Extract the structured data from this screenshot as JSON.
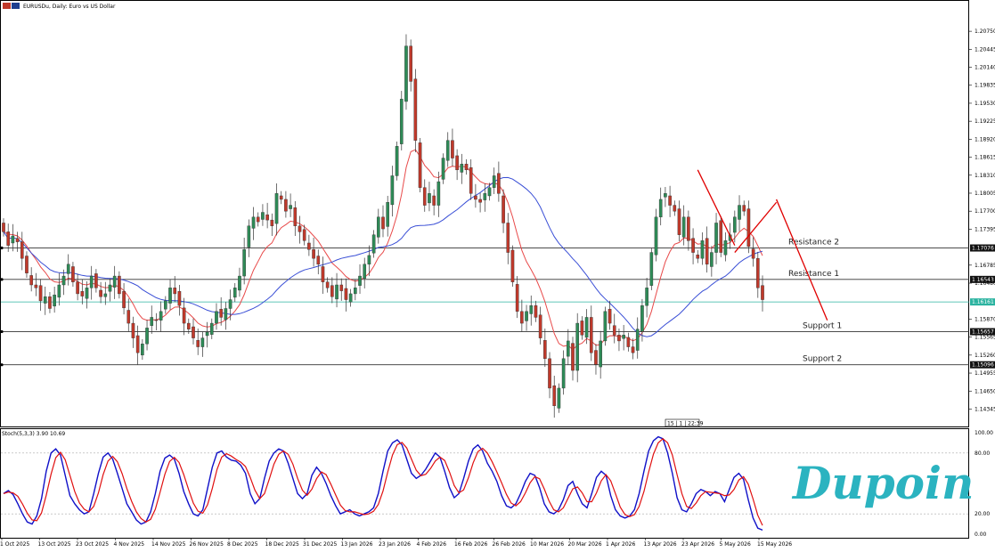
{
  "header": {
    "title": "EURUSDu, Daily: Euro vs US Dollar"
  },
  "colors": {
    "bull": "#2e8b57",
    "bear": "#c0392b",
    "ma_fast": "#e84a4a",
    "ma_slow": "#3a4fd6",
    "stoch_k": "#1010c8",
    "stoch_d": "#e01010",
    "current": "#2bb3a0",
    "logo": "#2bb3c0"
  },
  "logo": {
    "text": "Dupoin"
  },
  "chart_data": {
    "type": "candlestick",
    "title": "EURUSDu, Daily: Euro vs US Dollar",
    "ylim": [
      1.1405,
      1.2125
    ],
    "y_ticks": [
      "1.20750",
      "1.20445",
      "1.20140",
      "1.19835",
      "1.19530",
      "1.19225",
      "1.18920",
      "1.18615",
      "1.18310",
      "1.18005",
      "1.17700",
      "1.17395",
      "1.16785",
      "1.16480",
      "1.15870",
      "1.15565",
      "1.15260",
      "1.14955",
      "1.14650",
      "1.14345"
    ],
    "x_ticks": [
      "1 Oct 2025",
      "13 Oct 2025",
      "23 Oct 2025",
      "4 Nov 2025",
      "14 Nov 2025",
      "26 Nov 2025",
      "8 Dec 2025",
      "18 Dec 2025",
      "31 Dec 2025",
      "13 Jan 2026",
      "23 Jan 2026",
      "4 Feb 2026",
      "16 Feb 2026",
      "26 Feb 2026",
      "10 Mar 2026",
      "20 Mar 2026",
      "1 Apr 2026",
      "13 Apr 2026",
      "23 Apr 2026",
      "5 May 2026",
      "15 May 2026"
    ],
    "close": [
      1.1735,
      1.1712,
      1.1728,
      1.1718,
      1.169,
      1.1665,
      1.1645,
      1.164,
      1.1618,
      1.1625,
      1.1605,
      1.1628,
      1.1645,
      1.166,
      1.168,
      1.165,
      1.163,
      1.1626,
      1.164,
      1.166,
      1.164,
      1.1625,
      1.163,
      1.1645,
      1.166,
      1.163,
      1.1606,
      1.158,
      1.1555,
      1.153,
      1.1545,
      1.1572,
      1.159,
      1.1585,
      1.16,
      1.1618,
      1.164,
      1.163,
      1.161,
      1.158,
      1.157,
      1.1555,
      1.154,
      1.1555,
      1.1565,
      1.158,
      1.16,
      1.159,
      1.1605,
      1.162,
      1.164,
      1.166,
      1.1705,
      1.1745,
      1.176,
      1.1752,
      1.1768,
      1.1755,
      1.1745,
      1.18,
      1.179,
      1.177,
      1.178,
      1.1745,
      1.1735,
      1.172,
      1.1705,
      1.169,
      1.168,
      1.165,
      1.164,
      1.1625,
      1.1645,
      1.1635,
      1.162,
      1.163,
      1.164,
      1.166,
      1.168,
      1.1695,
      1.173,
      1.176,
      1.174,
      1.1785,
      1.183,
      1.188,
      1.196,
      1.205,
      1.199,
      1.189,
      1.181,
      1.178,
      1.18,
      1.178,
      1.182,
      1.186,
      1.189,
      1.186,
      1.184,
      1.185,
      1.184,
      1.18,
      1.179,
      1.1785,
      1.18,
      1.181,
      1.183,
      1.18,
      1.175,
      1.17,
      1.165,
      1.16,
      1.158,
      1.16,
      1.161,
      1.159,
      1.1555,
      1.152,
      1.147,
      1.144,
      1.147,
      1.152,
      1.155,
      1.15,
      1.158,
      1.156,
      1.159,
      1.153,
      1.151,
      1.155,
      1.16,
      1.158,
      1.156,
      1.155,
      1.156,
      1.154,
      1.153,
      1.157,
      1.161,
      1.164,
      1.17,
      1.176,
      1.179,
      1.18,
      1.178,
      1.177,
      1.173,
      1.176,
      1.172,
      1.17,
      1.169,
      1.172,
      1.168,
      1.17,
      1.175,
      1.17,
      1.172,
      1.173,
      1.176,
      1.178,
      1.177,
      1.171,
      1.169,
      1.164,
      1.162
    ],
    "last": "1.16161",
    "levels": [
      {
        "name": "Resistance 2",
        "value": 1.17076,
        "tag": "1.17076"
      },
      {
        "name": "Resistance 1",
        "value": 1.16543,
        "tag": "1.16543"
      },
      {
        "name": "Support 1",
        "value": 1.15657,
        "tag": "1.15657"
      },
      {
        "name": "Support 2",
        "value": 1.15096,
        "tag": "1.15096"
      }
    ],
    "trendlines": [
      {
        "from": [
          150,
          1.184
        ],
        "to": [
          158,
          1.1712
        ]
      },
      {
        "from": [
          158,
          1.17
        ],
        "to": [
          167,
          1.1785
        ]
      },
      {
        "from": [
          167,
          1.179
        ],
        "to": [
          178,
          1.1585
        ]
      }
    ],
    "time_label": "15 | 1 | 22:39",
    "stoch": {
      "label": "Stoch(5,3,3) 3.90 10.69",
      "ylim": [
        0,
        100
      ],
      "ticks": [
        "100.00",
        "80.00",
        "20.00",
        "0.00"
      ],
      "k": [
        40,
        43,
        39,
        30,
        20,
        12,
        10,
        18,
        35,
        62,
        80,
        84,
        78,
        58,
        38,
        30,
        24,
        20,
        22,
        40,
        60,
        76,
        80,
        74,
        60,
        45,
        30,
        22,
        14,
        10,
        12,
        22,
        40,
        62,
        75,
        78,
        74,
        60,
        42,
        30,
        20,
        18,
        24,
        45,
        66,
        80,
        82,
        76,
        73,
        72,
        68,
        60,
        40,
        30,
        35,
        55,
        72,
        80,
        84,
        82,
        70,
        55,
        40,
        35,
        40,
        58,
        66,
        60,
        50,
        38,
        28,
        20,
        22,
        24,
        20,
        18,
        20,
        22,
        26,
        40,
        62,
        82,
        90,
        93,
        88,
        74,
        60,
        55,
        58,
        64,
        72,
        80,
        76,
        62,
        46,
        36,
        40,
        55,
        72,
        84,
        88,
        82,
        70,
        62,
        52,
        38,
        28,
        26,
        30,
        40,
        52,
        60,
        58,
        46,
        30,
        22,
        20,
        24,
        34,
        48,
        52,
        40,
        30,
        26,
        40,
        56,
        62,
        58,
        38,
        24,
        18,
        16,
        18,
        24,
        40,
        62,
        82,
        92,
        96,
        94,
        80,
        60,
        36,
        24,
        22,
        30,
        40,
        44,
        42,
        38,
        42,
        40,
        32,
        44,
        56,
        60,
        54,
        34,
        16,
        6,
        4
      ]
    }
  }
}
